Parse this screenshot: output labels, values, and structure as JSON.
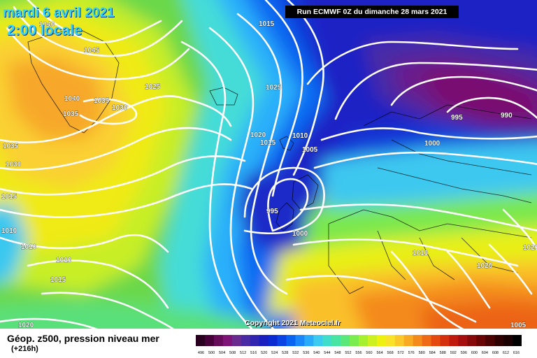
{
  "header": {
    "date": "mardi 6 avril 2021",
    "time": "2:00 locale",
    "run": "Run ECMWF 0Z du dimanche 28 mars 2021"
  },
  "copyright": "Copyright 2021 Meteociel.fr",
  "footer": {
    "field": "Géop. z500, pression niveau mer",
    "lead": "(+216h)"
  },
  "isobar_labels": [
    "1040",
    "1045",
    "1025",
    "1015",
    "1040",
    "1035",
    "1035",
    "1030",
    "1025",
    "1035",
    "1030",
    "1015",
    "1010",
    "1010",
    "1010",
    "1015",
    "1020",
    "1015",
    "1010",
    "1005",
    "995",
    "1000",
    "995",
    "990",
    "1000",
    "1010",
    "1020",
    "1020",
    "1020",
    "1005"
  ],
  "legend": {
    "colors": [
      "#2a0020",
      "#48003a",
      "#660a5a",
      "#7e1478",
      "#6a2a90",
      "#4a2aa4",
      "#3024b0",
      "#1a20c0",
      "#0a2ad2",
      "#0a44e4",
      "#0a64f2",
      "#1a88fa",
      "#2aaafa",
      "#3ccaf0",
      "#40dccc",
      "#48e4a4",
      "#5ae87a",
      "#7aec4e",
      "#a6f030",
      "#ccf020",
      "#eef010",
      "#fae22a",
      "#fac82a",
      "#f8aa22",
      "#f48a1a",
      "#ee6a14",
      "#e44a10",
      "#d4300e",
      "#c01a0e",
      "#a40e0e",
      "#860808",
      "#680404",
      "#4c0202",
      "#300000",
      "#1a0000",
      "#000000"
    ],
    "labels": [
      "496",
      "500",
      "504",
      "508",
      "512",
      "516",
      "520",
      "524",
      "528",
      "532",
      "536",
      "540",
      "544",
      "548",
      "552",
      "556",
      "560",
      "564",
      "568",
      "572",
      "576",
      "580",
      "584",
      "588",
      "592",
      "596",
      "600",
      "604",
      "608",
      "612",
      "616"
    ]
  }
}
